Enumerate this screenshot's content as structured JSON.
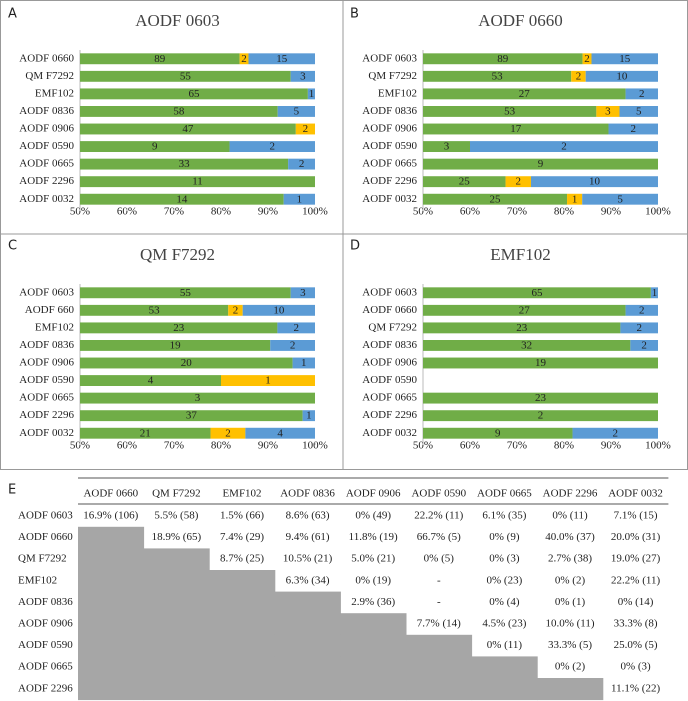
{
  "panel_labels": [
    "A",
    "B",
    "C",
    "D",
    "E"
  ],
  "chart_data": [
    {
      "type": "bar",
      "orientation": "horizontal",
      "stack": "percent",
      "title": "AODF 0603",
      "categories": [
        "AODF 0660",
        "QM F7292",
        "EMF102",
        "AODF 0836",
        "AODF 0906",
        "AODF 0590",
        "AODF 0665",
        "AODF 2296",
        "AODF 0032"
      ],
      "series": [
        {
          "color": "#70ad47",
          "values": [
            89,
            55,
            65,
            58,
            47,
            9,
            33,
            11,
            14
          ]
        },
        {
          "color": "#ffc000",
          "values": [
            2,
            null,
            null,
            null,
            2,
            null,
            null,
            null,
            null
          ]
        },
        {
          "color": "#5b9bd5",
          "values": [
            15,
            3,
            1,
            5,
            null,
            2,
            2,
            null,
            1
          ]
        }
      ],
      "xlim": [
        50,
        100
      ],
      "xticks": [
        {
          "value": 50,
          "label": "50%"
        },
        {
          "value": 60,
          "label": "60%"
        },
        {
          "value": 70,
          "label": "70%"
        },
        {
          "value": 80,
          "label": "80%"
        },
        {
          "value": 90,
          "label": "90%"
        },
        {
          "value": 100,
          "label": "100%"
        }
      ]
    },
    {
      "type": "bar",
      "orientation": "horizontal",
      "stack": "percent",
      "title": "AODF 0660",
      "categories": [
        "AODF 0603",
        "QM F7292",
        "EMF102",
        "AODF 0836",
        "AODF 0906",
        "AODF 0590",
        "AODF 0665",
        "AODF 2296",
        "AODF 0032"
      ],
      "series": [
        {
          "color": "#70ad47",
          "values": [
            89,
            53,
            27,
            53,
            17,
            3,
            9,
            25,
            25
          ]
        },
        {
          "color": "#ffc000",
          "values": [
            2,
            2,
            null,
            3,
            null,
            null,
            null,
            2,
            1
          ]
        },
        {
          "color": "#5b9bd5",
          "values": [
            15,
            10,
            2,
            5,
            2,
            2,
            null,
            10,
            5
          ]
        }
      ],
      "xlim": [
        50,
        100
      ],
      "xticks": [
        {
          "value": 50,
          "label": "50%"
        },
        {
          "value": 60,
          "label": "60%"
        },
        {
          "value": 70,
          "label": "70%"
        },
        {
          "value": 80,
          "label": "80%"
        },
        {
          "value": 90,
          "label": "90%"
        },
        {
          "value": 100,
          "label": "100%"
        }
      ]
    },
    {
      "type": "bar",
      "orientation": "horizontal",
      "stack": "percent",
      "title": "QM F7292",
      "categories": [
        "AODF 0603",
        "AODF 660",
        "EMF102",
        "AODF 0836",
        "AODF 0906",
        "AODF 0590",
        "AODF 0665",
        "AODF 2296",
        "AODF 0032"
      ],
      "series": [
        {
          "color": "#70ad47",
          "values": [
            55,
            53,
            23,
            19,
            20,
            4,
            3,
            37,
            21
          ]
        },
        {
          "color": "#ffc000",
          "values": [
            null,
            2,
            null,
            null,
            null,
            1,
            null,
            null,
            2
          ]
        },
        {
          "color": "#5b9bd5",
          "values": [
            3,
            10,
            2,
            2,
            1,
            null,
            null,
            1,
            4
          ]
        }
      ],
      "xlim": [
        50,
        100
      ],
      "xticks": [
        {
          "value": 50,
          "label": "50%"
        },
        {
          "value": 60,
          "label": "60%"
        },
        {
          "value": 70,
          "label": "70%"
        },
        {
          "value": 80,
          "label": "80%"
        },
        {
          "value": 90,
          "label": "90%"
        },
        {
          "value": 100,
          "label": "100%"
        }
      ]
    },
    {
      "type": "bar",
      "orientation": "horizontal",
      "stack": "percent",
      "title": "EMF102",
      "categories": [
        "AODF 0603",
        "AODF 0660",
        "QM F7292",
        "AODF 0836",
        "AODF 0906",
        "AODF 0590",
        "AODF 0665",
        "AODF 2296",
        "AODF 0032"
      ],
      "series": [
        {
          "color": "#70ad47",
          "values": [
            65,
            27,
            23,
            32,
            19,
            null,
            23,
            2,
            9
          ]
        },
        {
          "color": "#ffc000",
          "values": [
            null,
            null,
            null,
            null,
            null,
            null,
            null,
            null,
            null
          ]
        },
        {
          "color": "#5b9bd5",
          "values": [
            1,
            2,
            2,
            2,
            null,
            null,
            null,
            null,
            2
          ]
        }
      ],
      "xlim": [
        50,
        100
      ],
      "xticks": [
        {
          "value": 50,
          "label": "50%"
        },
        {
          "value": 60,
          "label": "60%"
        },
        {
          "value": 70,
          "label": "70%"
        },
        {
          "value": 80,
          "label": "80%"
        },
        {
          "value": 90,
          "label": "90%"
        },
        {
          "value": 100,
          "label": "100%"
        }
      ]
    }
  ],
  "table": {
    "columns": [
      "AODF 0660",
      "QM F7292",
      "EMF102",
      "AODF 0836",
      "AODF 0906",
      "AODF 0590",
      "AODF 0665",
      "AODF 2296",
      "AODF 0032"
    ],
    "rows": [
      {
        "label": "AODF 0603",
        "cells": [
          "16.9% (106)",
          "5.5% (58)",
          "1.5% (66)",
          "8.6% (63)",
          "0% (49)",
          "22.2% (11)",
          "6.1% (35)",
          "0% (11)",
          "7.1% (15)"
        ]
      },
      {
        "label": "AODF 0660",
        "cells": [
          null,
          "18.9% (65)",
          "7.4% (29)",
          "9.4% (61)",
          "11.8% (19)",
          "66.7% (5)",
          "0% (9)",
          "40.0% (37)",
          "20.0% (31)"
        ]
      },
      {
        "label": "QM F7292",
        "cells": [
          null,
          null,
          "8.7% (25)",
          "10.5% (21)",
          "5.0% (21)",
          "0% (5)",
          "0% (3)",
          "2.7% (38)",
          "19.0% (27)"
        ]
      },
      {
        "label": "EMF102",
        "cells": [
          null,
          null,
          null,
          "6.3% (34)",
          "0% (19)",
          "-",
          "0% (23)",
          "0% (2)",
          "22.2% (11)"
        ]
      },
      {
        "label": "AODF 0836",
        "cells": [
          null,
          null,
          null,
          null,
          "2.9% (36)",
          "-",
          "0% (4)",
          "0% (1)",
          "0% (14)"
        ]
      },
      {
        "label": "AODF 0906",
        "cells": [
          null,
          null,
          null,
          null,
          null,
          "7.7% (14)",
          "4.5% (23)",
          "10.0% (11)",
          "33.3% (8)"
        ]
      },
      {
        "label": "AODF 0590",
        "cells": [
          null,
          null,
          null,
          null,
          null,
          null,
          "0% (11)",
          "33.3% (5)",
          "25.0% (5)"
        ]
      },
      {
        "label": "AODF 0665",
        "cells": [
          null,
          null,
          null,
          null,
          null,
          null,
          null,
          "0% (2)",
          "0% (3)"
        ]
      },
      {
        "label": "AODF 2296",
        "cells": [
          null,
          null,
          null,
          null,
          null,
          null,
          null,
          null,
          "11.1% (22)"
        ]
      }
    ]
  }
}
